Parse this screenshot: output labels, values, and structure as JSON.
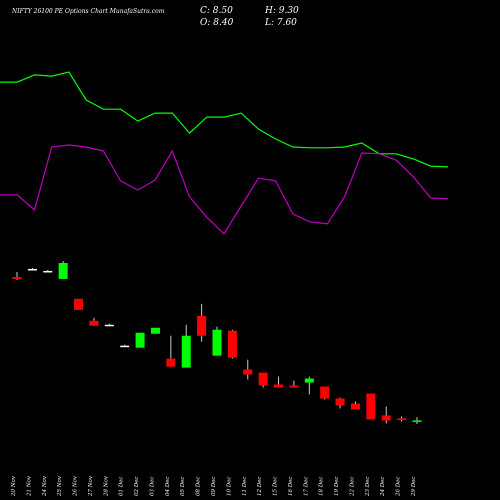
{
  "chart_data": {
    "type": "candlestick",
    "title": "NIFTY 26100  PE Options Chart MunafaSutra.com",
    "summary": [
      "C: 8.50",
      "H: 9.30",
      "O: 8.40",
      "L: 7.60"
    ],
    "categories": [
      "20 Nov",
      "21 Nov",
      "24 Nov",
      "25 Nov",
      "26 Nov",
      "27 Nov",
      "28 Nov",
      "01 Dec",
      "02 Dec",
      "03 Dec",
      "04 Dec",
      "05 Dec",
      "08 Dec",
      "09 Dec",
      "10 Dec",
      "11 Dec",
      "12 Dec",
      "15 Dec",
      "16 Dec",
      "17 Dec",
      "18 Dec",
      "19 Dec",
      "22 Dec",
      "23 Dec",
      "24 Dec",
      "26 Dec",
      "29 Dec"
    ],
    "open": [
      44.5,
      46.5,
      46,
      44,
      39,
      33.5,
      32.5,
      27.25,
      26.75,
      30.25,
      24,
      21.75,
      34.75,
      24.75,
      31,
      21.25,
      20.5,
      17.5,
      17.25,
      18,
      17,
      14,
      12.75,
      15.25,
      9.75,
      9,
      8.4
    ],
    "high": [
      45.75,
      46.75,
      46.25,
      48.5,
      39,
      34.25,
      32.75,
      27.5,
      30.5,
      31.75,
      29.75,
      32.5,
      37.75,
      32,
      31.25,
      23.75,
      20.5,
      19.5,
      18.5,
      19.5,
      17,
      14.25,
      13.25,
      15.25,
      12,
      9.5,
      9.3
    ],
    "low": [
      43.75,
      46.25,
      45.75,
      44,
      36.25,
      32.25,
      32.25,
      27,
      26.75,
      30.25,
      22,
      21.75,
      28.25,
      24.75,
      24,
      18.75,
      16.75,
      16.75,
      16.75,
      15,
      13.75,
      11.5,
      11.25,
      8.75,
      7.75,
      8.2,
      7.6
    ],
    "close": [
      44,
      46.5,
      46,
      48,
      36.25,
      32.25,
      32.5,
      27.25,
      30.5,
      31.75,
      22,
      29.75,
      29.75,
      31.25,
      24.25,
      20,
      17.25,
      16.75,
      16.75,
      19,
      14,
      12.25,
      11.25,
      8.75,
      8.5,
      8.6,
      8.5
    ],
    "up_color": "#00ff00",
    "down_color": "#ff0000",
    "lines": [
      {
        "color": "#00ff00",
        "values": [
          93.4,
          93.4,
          95.2,
          94.9,
          95.9,
          88.9,
          86.6,
          86.6,
          83.6,
          85.6,
          85.6,
          80.6,
          84.6,
          84.6,
          85.6,
          81.6,
          79.1,
          77.1,
          76.9,
          76.9,
          77.1,
          78.1,
          75.4,
          75.4,
          74.1,
          72.3,
          72.1
        ]
      },
      {
        "color": "#c000c0",
        "values": [
          65.1,
          65.1,
          61.3,
          77.1,
          77.6,
          77.1,
          76.1,
          68.6,
          66.3,
          68.8,
          76.1,
          64.6,
          59.5,
          55.3,
          62.3,
          69.3,
          68.6,
          60.3,
          58.3,
          57.8,
          64.6,
          75.6,
          75.4,
          73.8,
          69.6,
          64.3,
          64.1
        ]
      }
    ]
  }
}
